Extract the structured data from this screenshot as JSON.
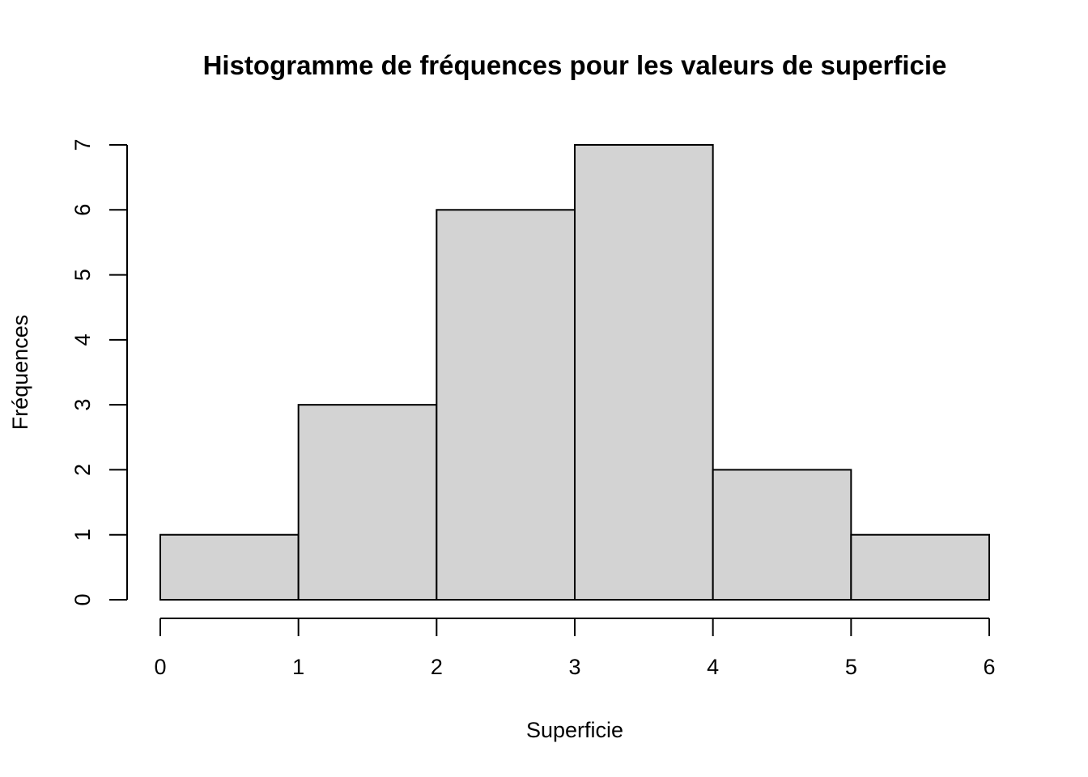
{
  "chart_data": {
    "type": "bar",
    "subtype": "histogram",
    "title": "Histogramme de fréquences pour les valeurs de superficie",
    "xlabel": "Superficie",
    "ylabel": "Fréquences",
    "bins": [
      {
        "from": 0,
        "to": 1,
        "count": 1
      },
      {
        "from": 1,
        "to": 2,
        "count": 3
      },
      {
        "from": 2,
        "to": 3,
        "count": 6
      },
      {
        "from": 3,
        "to": 4,
        "count": 7
      },
      {
        "from": 4,
        "to": 5,
        "count": 2
      },
      {
        "from": 5,
        "to": 6,
        "count": 1
      }
    ],
    "xlim": [
      0,
      6
    ],
    "ylim": [
      0,
      7
    ],
    "x_ticks": [
      "0",
      "1",
      "2",
      "3",
      "4",
      "5",
      "6"
    ],
    "y_ticks": [
      "0",
      "1",
      "2",
      "3",
      "4",
      "5",
      "6",
      "7"
    ],
    "grid": false,
    "bar_color": "#d3d3d3",
    "edge_color": "#000000"
  }
}
